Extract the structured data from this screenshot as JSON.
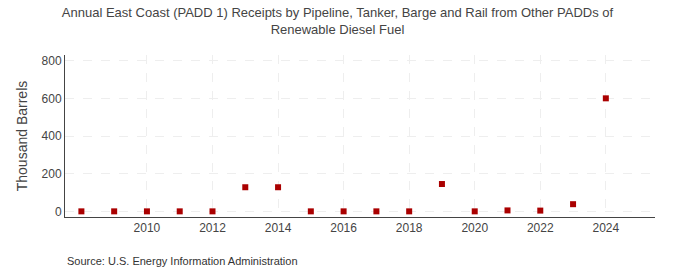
{
  "chart_data": {
    "type": "scatter",
    "title": "Annual East Coast (PADD 1) Receipts by Pipeline, Tanker, Barge and Rail from Other PADDs of\nRenewable Diesel Fuel",
    "ylabel": "Thousand Barrels",
    "annotations": [
      "Source: U.S. Energy Information Administration"
    ],
    "x": [
      2008,
      2009,
      2010,
      2011,
      2012,
      2013,
      2014,
      2015,
      2016,
      2017,
      2018,
      2019,
      2020,
      2021,
      2022,
      2023,
      2024
    ],
    "values": [
      0,
      0,
      0,
      0,
      0,
      128,
      128,
      0,
      0,
      0,
      0,
      145,
      0,
      5,
      4,
      38,
      600
    ],
    "color": "#aa0000",
    "marker": "square",
    "xlim": [
      2007.5,
      2025.5
    ],
    "ylim": [
      -30,
      830
    ],
    "xticks": [
      2010,
      2012,
      2014,
      2016,
      2018,
      2020,
      2022,
      2024
    ],
    "yticks": [
      0,
      200,
      400,
      600,
      800
    ],
    "grid": true
  }
}
